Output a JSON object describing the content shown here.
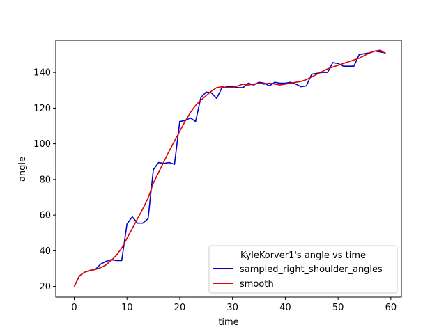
{
  "chart_data": {
    "type": "line",
    "title": "",
    "xlabel": "time",
    "ylabel": "angle",
    "xlim": [
      -3.5,
      62
    ],
    "ylim": [
      14,
      158
    ],
    "xticks": [
      0,
      10,
      20,
      30,
      40,
      50,
      60
    ],
    "yticks": [
      20,
      40,
      60,
      80,
      100,
      120,
      140
    ],
    "grid": false,
    "legend": {
      "title": "KyleKorver1's angle vs time",
      "placement": "lower-right"
    },
    "series": [
      {
        "name": "sampled_right_shoulder_angles",
        "color": "#0000cc",
        "x": [
          0,
          1,
          2,
          3,
          4,
          5,
          6,
          7,
          8,
          9,
          10,
          11,
          12,
          13,
          14,
          15,
          16,
          17,
          18,
          19,
          20,
          21,
          22,
          23,
          24,
          25,
          26,
          27,
          28,
          29,
          30,
          31,
          32,
          33,
          34,
          35,
          36,
          37,
          38,
          39,
          40,
          41,
          42,
          43,
          44,
          45,
          46,
          47,
          48,
          49,
          50,
          51,
          52,
          53,
          54,
          55,
          56,
          57,
          58,
          59
        ],
        "y": [
          20,
          26,
          28,
          29,
          29.5,
          32.5,
          34,
          35,
          34.5,
          34.5,
          55,
          59,
          55.5,
          55.5,
          58,
          85.5,
          89.5,
          89,
          89.5,
          88.5,
          112.5,
          113,
          114.5,
          112.5,
          126,
          129,
          128.5,
          125.5,
          131.5,
          132,
          132,
          131.5,
          131.5,
          134,
          133,
          134.5,
          134,
          132.5,
          134.5,
          134,
          134,
          134.5,
          133.5,
          132,
          132.5,
          139,
          139.5,
          140,
          140,
          145.5,
          145,
          143.5,
          143.5,
          143.5,
          150,
          150.5,
          151,
          152,
          151.5,
          151
        ]
      },
      {
        "name": "smooth",
        "color": "#dd0000",
        "x": [
          0,
          1,
          2,
          3,
          4,
          5,
          6,
          7,
          8,
          9,
          10,
          11,
          12,
          13,
          14,
          15,
          16,
          17,
          18,
          19,
          20,
          21,
          22,
          23,
          24,
          25,
          26,
          27,
          28,
          29,
          30,
          31,
          32,
          33,
          34,
          35,
          36,
          37,
          38,
          39,
          40,
          41,
          42,
          43,
          44,
          45,
          46,
          47,
          48,
          49,
          50,
          51,
          52,
          53,
          54,
          55,
          56,
          57,
          58,
          59
        ],
        "y": [
          20,
          26,
          28,
          29,
          29.5,
          30.5,
          32,
          34.5,
          37.5,
          41.5,
          47,
          52.5,
          58,
          63.5,
          69.5,
          78,
          84,
          90,
          96,
          101.5,
          107,
          112.5,
          117.5,
          121.5,
          124.5,
          127,
          129.5,
          131.5,
          132,
          131.5,
          131.5,
          132.5,
          133.5,
          133,
          133.5,
          134,
          133.5,
          134,
          133.5,
          133,
          133.5,
          134,
          134.5,
          135,
          136,
          137.5,
          139,
          140.5,
          142,
          143,
          144,
          145,
          146,
          147,
          148,
          149.5,
          151,
          152,
          152.5,
          150.5
        ]
      }
    ]
  }
}
